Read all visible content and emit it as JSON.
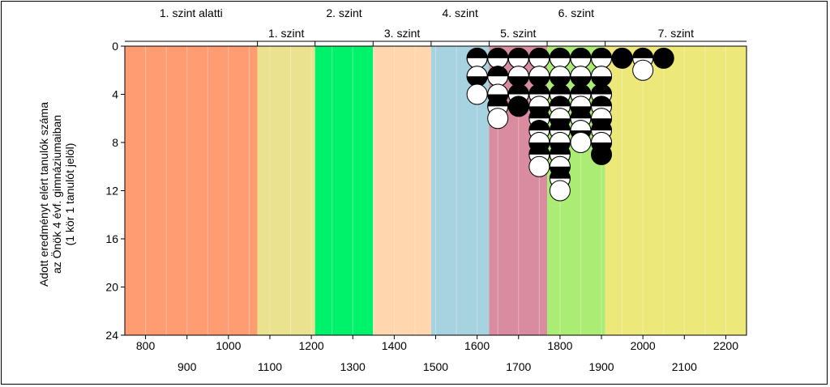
{
  "chart_data": {
    "type": "scatter",
    "ylabel_lines": [
      "Adott eredményt elért tanulók száma",
      "az Önök 4 évf. gimnáziumaiban",
      "(1 kör 1 tanulót jelöl)"
    ],
    "xlim": [
      750,
      2250
    ],
    "ylim": [
      0,
      24
    ],
    "y_inverted": true,
    "y_ticks": [
      0,
      4,
      8,
      12,
      16,
      20,
      24
    ],
    "x_ticks_row1": [
      800,
      1000,
      1200,
      1400,
      1600,
      1800,
      2000,
      2200
    ],
    "x_ticks_row2": [
      900,
      1100,
      1300,
      1500,
      1700,
      1900,
      2100
    ],
    "bands": [
      {
        "name": "1. szint alatti",
        "from": 750,
        "to": 1070,
        "color": "#ff9c71"
      },
      {
        "name": "1. szint",
        "from": 1070,
        "to": 1209,
        "color": "#eae28e"
      },
      {
        "name": "2. szint",
        "from": 1209,
        "to": 1349,
        "color": "#00f26b"
      },
      {
        "name": "3. szint",
        "from": 1349,
        "to": 1489,
        "color": "#ffd6ad"
      },
      {
        "name": "4. szint",
        "from": 1489,
        "to": 1629,
        "color": "#a7d2e0"
      },
      {
        "name": "5. szint",
        "from": 1629,
        "to": 1769,
        "color": "#d98b9f"
      },
      {
        "name": "6. szint",
        "from": 1769,
        "to": 1909,
        "color": "#abec75"
      },
      {
        "name": "7. szint",
        "from": 1909,
        "to": 2250,
        "color": "#ece879"
      }
    ],
    "band_labels_top": [
      "1. szint alatti",
      "2. szint",
      "4. szint",
      "6. szint"
    ],
    "band_labels_bottom": [
      "1. szint",
      "3. szint",
      "5. szint",
      "7. szint"
    ],
    "grid_step": 50,
    "circle_columns_x": [
      1600,
      1650,
      1700,
      1750,
      1800,
      1850,
      1900,
      1950,
      2000,
      2050
    ],
    "circles": [
      {
        "x": 1600,
        "y": 1,
        "style": "bw"
      },
      {
        "x": 1600,
        "y": 2.5,
        "style": "wb"
      },
      {
        "x": 1600,
        "y": 4,
        "style": "white"
      },
      {
        "x": 1650,
        "y": 1,
        "style": "bw"
      },
      {
        "x": 1650,
        "y": 2.5,
        "style": "bw"
      },
      {
        "x": 1650,
        "y": 4,
        "style": "wb"
      },
      {
        "x": 1650,
        "y": 5,
        "style": "bw"
      },
      {
        "x": 1650,
        "y": 6,
        "style": "white"
      },
      {
        "x": 1700,
        "y": 1,
        "style": "bw"
      },
      {
        "x": 1700,
        "y": 2.5,
        "style": "wb"
      },
      {
        "x": 1700,
        "y": 4,
        "style": "bw"
      },
      {
        "x": 1700,
        "y": 5,
        "style": "black"
      },
      {
        "x": 1750,
        "y": 1,
        "style": "bw"
      },
      {
        "x": 1750,
        "y": 2.5,
        "style": "wb"
      },
      {
        "x": 1750,
        "y": 4,
        "style": "bw"
      },
      {
        "x": 1750,
        "y": 5,
        "style": "wb"
      },
      {
        "x": 1750,
        "y": 6,
        "style": "bw"
      },
      {
        "x": 1750,
        "y": 7,
        "style": "bw"
      },
      {
        "x": 1750,
        "y": 8,
        "style": "wb"
      },
      {
        "x": 1750,
        "y": 9,
        "style": "bw"
      },
      {
        "x": 1750,
        "y": 10,
        "style": "white"
      },
      {
        "x": 1800,
        "y": 1,
        "style": "bw"
      },
      {
        "x": 1800,
        "y": 2.5,
        "style": "wb"
      },
      {
        "x": 1800,
        "y": 4,
        "style": "bw"
      },
      {
        "x": 1800,
        "y": 5,
        "style": "bw"
      },
      {
        "x": 1800,
        "y": 6,
        "style": "wb"
      },
      {
        "x": 1800,
        "y": 7,
        "style": "bw"
      },
      {
        "x": 1800,
        "y": 8,
        "style": "wb"
      },
      {
        "x": 1800,
        "y": 9,
        "style": "bw"
      },
      {
        "x": 1800,
        "y": 10,
        "style": "wb"
      },
      {
        "x": 1800,
        "y": 11,
        "style": "bw"
      },
      {
        "x": 1800,
        "y": 12,
        "style": "white"
      },
      {
        "x": 1850,
        "y": 1,
        "style": "bw"
      },
      {
        "x": 1850,
        "y": 2.5,
        "style": "wb"
      },
      {
        "x": 1850,
        "y": 4,
        "style": "bw"
      },
      {
        "x": 1850,
        "y": 5,
        "style": "wb"
      },
      {
        "x": 1850,
        "y": 6,
        "style": "bw"
      },
      {
        "x": 1850,
        "y": 7,
        "style": "wb"
      },
      {
        "x": 1850,
        "y": 8,
        "style": "white"
      },
      {
        "x": 1900,
        "y": 1,
        "style": "bw"
      },
      {
        "x": 1900,
        "y": 2.5,
        "style": "wb"
      },
      {
        "x": 1900,
        "y": 4,
        "style": "bw"
      },
      {
        "x": 1900,
        "y": 5,
        "style": "bw"
      },
      {
        "x": 1900,
        "y": 6,
        "style": "wb"
      },
      {
        "x": 1900,
        "y": 7,
        "style": "bw"
      },
      {
        "x": 1900,
        "y": 8,
        "style": "wb"
      },
      {
        "x": 1900,
        "y": 9,
        "style": "black"
      },
      {
        "x": 1950,
        "y": 1,
        "style": "black"
      },
      {
        "x": 2000,
        "y": 1,
        "style": "bw"
      },
      {
        "x": 2000,
        "y": 2,
        "style": "white"
      },
      {
        "x": 2050,
        "y": 1,
        "style": "black"
      }
    ]
  }
}
